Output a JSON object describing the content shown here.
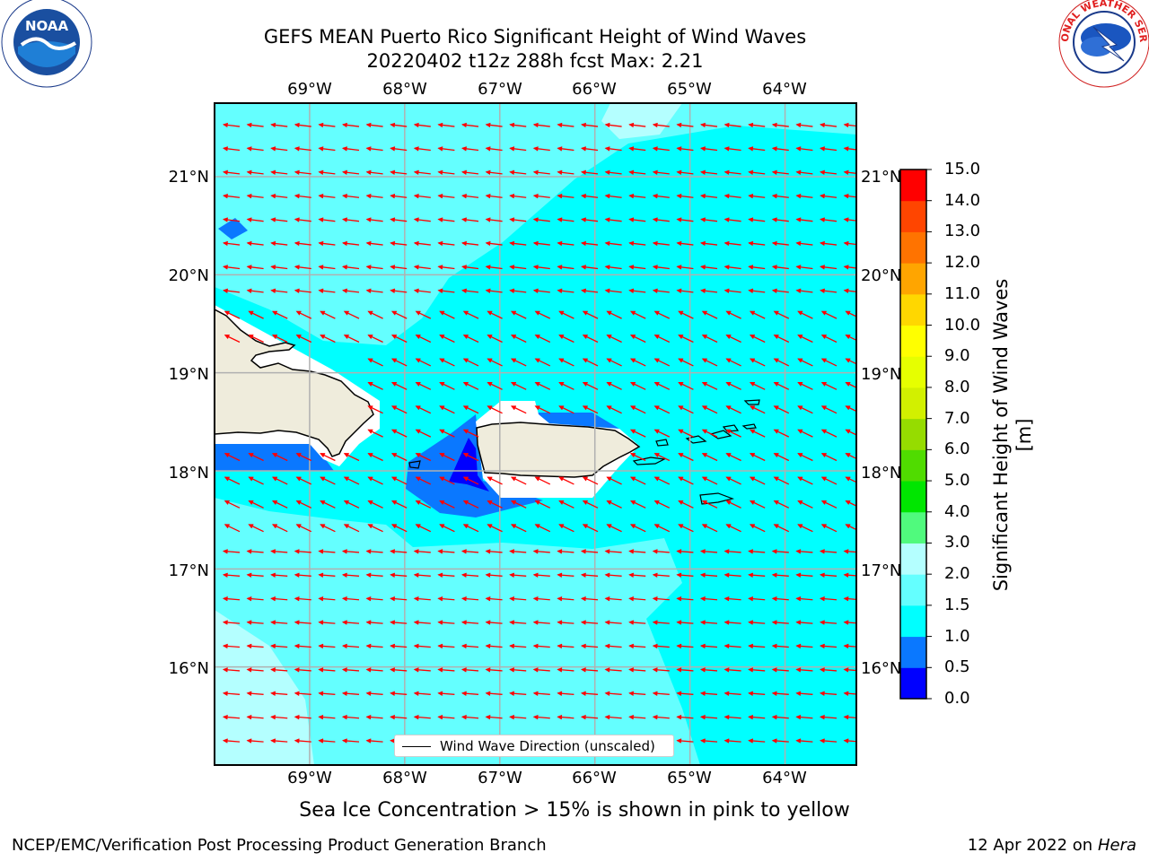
{
  "header": {
    "title_line1": "GEFS MEAN Puerto Rico Significant Height of Wind Waves",
    "title_line2": "20220402 t12z 288h fcst   Max: 2.21"
  },
  "logos": {
    "left": {
      "name": "noaa-logo",
      "text": "NOAA",
      "ring_text": "NATIONAL OCEANIC AND ATMOSPHERIC ADMINISTRATION · U.S. DEPARTMENT OF COMMERCE"
    },
    "right": {
      "name": "nws-logo",
      "ring_text": "NATIONAL WEATHER SERVICE"
    }
  },
  "map": {
    "lon_ticks": [
      "69°W",
      "68°W",
      "67°W",
      "66°W",
      "65°W",
      "64°W"
    ],
    "lat_ticks": [
      "21°N",
      "20°N",
      "19°N",
      "18°N",
      "17°N",
      "16°N"
    ],
    "lon_values": [
      -69,
      -68,
      -67,
      -66,
      -65,
      -64
    ],
    "lat_values": [
      21,
      20,
      19,
      18,
      17,
      16
    ],
    "extent": {
      "lon_min": -70,
      "lon_max": -63.25,
      "lat_min": 15,
      "lat_max": 21.75
    },
    "land_color": "#efecdc",
    "arrow_color": "#ff0000",
    "grid_color": "#b0b0b0"
  },
  "colorbar": {
    "title": "Significant Height of Wind Waves [m]",
    "labels": [
      "0.0",
      "0.5",
      "1.0",
      "1.5",
      "2.0",
      "3.0",
      "4.0",
      "5.0",
      "6.0",
      "7.0",
      "8.0",
      "9.0",
      "10.0",
      "11.0",
      "12.0",
      "13.0",
      "14.0",
      "15.0"
    ],
    "colors": [
      "#0000ff",
      "#0a78ff",
      "#00ffff",
      "#64ffff",
      "#b4ffff",
      "#50fa7d",
      "#00e600",
      "#50dc00",
      "#96dc00",
      "#d2f000",
      "#e6ff00",
      "#ffff00",
      "#ffd700",
      "#ffa500",
      "#ff7300",
      "#ff4500",
      "#ff0000"
    ]
  },
  "legend": {
    "label": "Wind Wave Direction (unscaled)"
  },
  "notes": {
    "sea_ice": "Sea Ice Concentration > 15% is shown in pink to yellow"
  },
  "footer": {
    "left": "NCEP/EMC/Verification Post Processing Product Generation Branch",
    "right_prefix": "12 Apr 2022 on ",
    "right_host": "Hera"
  }
}
